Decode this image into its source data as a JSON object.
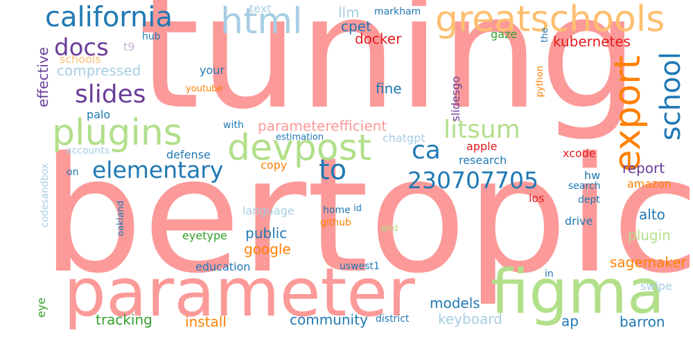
{
  "palette": {
    "pink": "#fb9a99",
    "light_green": "#b2df8a",
    "dark_blue": "#1f78b4",
    "light_blue": "#a6cee3",
    "purple": "#6a3d9a",
    "orange": "#ff7f00",
    "peach": "#fdbf6f",
    "red": "#e31a1c",
    "green": "#33a02c",
    "lavender": "#cab2d6"
  },
  "words": [
    {
      "text": "tuning",
      "color": "#fb9a99"
    },
    {
      "text": "bertopic",
      "color": "#fb9a99"
    },
    {
      "text": "parameter",
      "color": "#fb9a99"
    },
    {
      "text": "figma",
      "color": "#b2df8a"
    },
    {
      "text": "devpost",
      "color": "#b2df8a"
    },
    {
      "text": "plugins",
      "color": "#b2df8a"
    },
    {
      "text": "greatschools",
      "color": "#fdbf6f"
    },
    {
      "text": "california",
      "color": "#1f78b4"
    },
    {
      "text": "html",
      "color": "#a6cee3"
    },
    {
      "text": "docs",
      "color": "#6a3d9a"
    },
    {
      "text": "slides",
      "color": "#6a3d9a"
    },
    {
      "text": "elementary",
      "color": "#1f78b4"
    },
    {
      "text": "to",
      "color": "#1f78b4"
    },
    {
      "text": "230707705",
      "color": "#1f78b4"
    },
    {
      "text": "litsum",
      "color": "#b2df8a"
    },
    {
      "text": "ca",
      "color": "#1f78b4"
    },
    {
      "text": "export",
      "color": "#ff7f00"
    },
    {
      "text": "school",
      "color": "#1f78b4"
    },
    {
      "text": "compressed",
      "color": "#a6cee3"
    },
    {
      "text": "schools",
      "color": "#fdbf6f"
    },
    {
      "text": "parameterefficient",
      "color": "#fb9a99"
    },
    {
      "text": "text",
      "color": "#a6cee3"
    },
    {
      "text": "llm",
      "color": "#a6cee3"
    },
    {
      "text": "markham",
      "color": "#1f78b4"
    },
    {
      "text": "cpet",
      "color": "#1f78b4"
    },
    {
      "text": "gaze",
      "color": "#33a02c"
    },
    {
      "text": "docker",
      "color": "#e31a1c"
    },
    {
      "text": "kubernetes",
      "color": "#e31a1c"
    },
    {
      "text": "the",
      "color": "#1f78b4"
    },
    {
      "text": "t9",
      "color": "#cab2d6"
    },
    {
      "text": "hub",
      "color": "#1f78b4"
    },
    {
      "text": "effective",
      "color": "#6a3d9a"
    },
    {
      "text": "your",
      "color": "#1f78b4"
    },
    {
      "text": "youtube",
      "color": "#ff7f00"
    },
    {
      "text": "fine",
      "color": "#1f78b4"
    },
    {
      "text": "slidesgo",
      "color": "#6a3d9a"
    },
    {
      "text": "python",
      "color": "#ff7f00"
    },
    {
      "text": "palo",
      "color": "#1f78b4"
    },
    {
      "text": "with",
      "color": "#1f78b4"
    },
    {
      "text": "estimation",
      "color": "#1f78b4"
    },
    {
      "text": "chatgpt",
      "color": "#a6cee3"
    },
    {
      "text": "accounts",
      "color": "#a6cee3"
    },
    {
      "text": "defense",
      "color": "#1f78b4"
    },
    {
      "text": "apple",
      "color": "#e31a1c"
    },
    {
      "text": "xcode",
      "color": "#e31a1c"
    },
    {
      "text": "research",
      "color": "#1f78b4"
    },
    {
      "text": "copy",
      "color": "#ff7f00"
    },
    {
      "text": "codesandbox",
      "color": "#a6cee3"
    },
    {
      "text": "on",
      "color": "#1f78b4"
    },
    {
      "text": "hw",
      "color": "#1f78b4"
    },
    {
      "text": "report",
      "color": "#6a3d9a"
    },
    {
      "text": "amazon",
      "color": "#ff7f00"
    },
    {
      "text": "search",
      "color": "#1f78b4"
    },
    {
      "text": "ios",
      "color": "#e31a1c"
    },
    {
      "text": "dept",
      "color": "#1f78b4"
    },
    {
      "text": "alto",
      "color": "#1f78b4"
    },
    {
      "text": "language",
      "color": "#a6cee3"
    },
    {
      "text": "home",
      "color": "#1f78b4"
    },
    {
      "text": "id",
      "color": "#1f78b4"
    },
    {
      "text": "oakland",
      "color": "#1f78b4"
    },
    {
      "text": "github",
      "color": "#ff7f00"
    },
    {
      "text": "and",
      "color": "#b2df8a"
    },
    {
      "text": "drive",
      "color": "#1f78b4"
    },
    {
      "text": "public",
      "color": "#1f78b4"
    },
    {
      "text": "plugin",
      "color": "#b2df8a"
    },
    {
      "text": "eyetype",
      "color": "#33a02c"
    },
    {
      "text": "google",
      "color": "#ff7f00"
    },
    {
      "text": "education",
      "color": "#1f78b4"
    },
    {
      "text": "uswest1",
      "color": "#1f78b4"
    },
    {
      "text": "sagemaker",
      "color": "#ff7f00"
    },
    {
      "text": "in",
      "color": "#1f78b4"
    },
    {
      "text": "swipe",
      "color": "#a6cee3"
    },
    {
      "text": "eye",
      "color": "#33a02c"
    },
    {
      "text": "models",
      "color": "#1f78b4"
    },
    {
      "text": "tracking",
      "color": "#33a02c"
    },
    {
      "text": "install",
      "color": "#ff7f00"
    },
    {
      "text": "community",
      "color": "#1f78b4"
    },
    {
      "text": "district",
      "color": "#1f78b4"
    },
    {
      "text": "keyboard",
      "color": "#a6cee3"
    },
    {
      "text": "ap",
      "color": "#1f78b4"
    },
    {
      "text": "barron",
      "color": "#1f78b4"
    }
  ]
}
